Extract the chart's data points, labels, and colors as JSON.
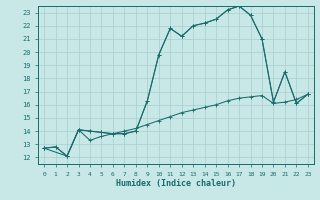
{
  "xlabel": "Humidex (Indice chaleur)",
  "bg_color": "#c8e8e8",
  "line_color": "#1a6b6b",
  "grid_color": "#a8cccc",
  "xlim": [
    -0.5,
    23.5
  ],
  "ylim": [
    11.5,
    23.5
  ],
  "yticks": [
    12,
    13,
    14,
    15,
    16,
    17,
    18,
    19,
    20,
    21,
    22,
    23
  ],
  "xticks": [
    0,
    1,
    2,
    3,
    4,
    5,
    6,
    7,
    8,
    9,
    10,
    11,
    12,
    13,
    14,
    15,
    16,
    17,
    18,
    19,
    20,
    21,
    22,
    23
  ],
  "series1_x": [
    0,
    1,
    2,
    3,
    4,
    5,
    6,
    7,
    8,
    9,
    10,
    11,
    12,
    13,
    14,
    15,
    16,
    17,
    18,
    19,
    20,
    21,
    22,
    23
  ],
  "series1_y": [
    12.7,
    12.8,
    12.1,
    14.1,
    14.0,
    13.9,
    13.8,
    13.8,
    14.0,
    16.3,
    19.8,
    21.8,
    21.2,
    22.0,
    22.2,
    22.5,
    23.2,
    23.5,
    22.8,
    21.0,
    16.2,
    18.5,
    16.1,
    16.8
  ],
  "series2_x": [
    0,
    1,
    2,
    3,
    4,
    5,
    6,
    7,
    8,
    9,
    10,
    11,
    12,
    13,
    14,
    15,
    16,
    17,
    18,
    19,
    20,
    21,
    22,
    23
  ],
  "series2_y": [
    12.7,
    12.8,
    12.1,
    14.1,
    13.3,
    13.6,
    13.8,
    14.0,
    14.2,
    14.5,
    14.8,
    15.1,
    15.4,
    15.6,
    15.8,
    16.0,
    16.3,
    16.5,
    16.6,
    16.7,
    16.1,
    16.2,
    16.4,
    16.8
  ],
  "series3_x": [
    0,
    2,
    3,
    4,
    5,
    6,
    7,
    8,
    9,
    10,
    11,
    12,
    13,
    14,
    15,
    16,
    17,
    18,
    19,
    20,
    21,
    22,
    23
  ],
  "series3_y": [
    12.7,
    12.1,
    14.1,
    14.0,
    13.9,
    13.8,
    13.8,
    14.0,
    16.3,
    19.8,
    21.8,
    21.2,
    22.0,
    22.2,
    22.5,
    23.2,
    23.5,
    22.8,
    21.0,
    16.2,
    18.5,
    16.1,
    16.8
  ]
}
